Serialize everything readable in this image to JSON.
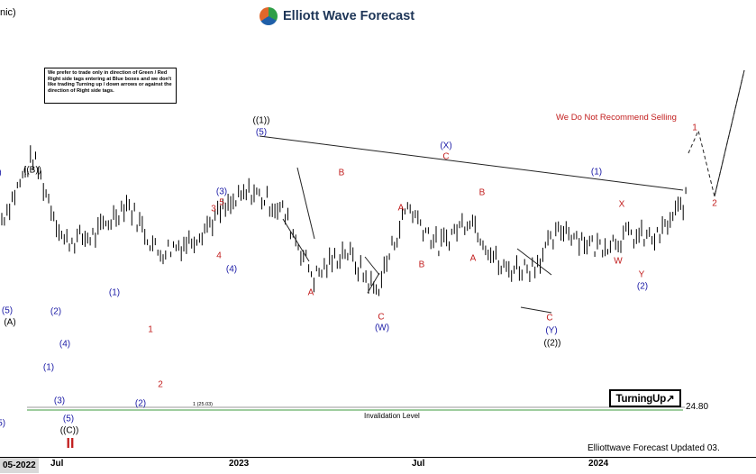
{
  "header": {
    "brand_name": "Elliott Wave Forecast",
    "title_fragment": "nic)"
  },
  "note_box": {
    "text": "We prefer to trade only in direction of Green / Red Right side tags entering at Blue boxes and we don't like trading Turning up / down arrows or against the direction of Right side tags."
  },
  "warning": "We Do Not Recommend Selling",
  "turning_up": "TurningUp↗",
  "price_level": "24.80",
  "invalidation": {
    "label": "Invalidation Level",
    "small_label": "1 (25.03)"
  },
  "footer": "Elliottwave Forecast Updated 03.",
  "colors": {
    "wave_blue": "#1a1aa6",
    "wave_red": "#c21d1d",
    "invalidation_green": "#3c9b3c",
    "bars": "#000000"
  },
  "chart_data": {
    "type": "line",
    "title": "",
    "xlabel": "",
    "ylabel": "",
    "x_ticks": [
      "05-2022",
      "Jul",
      "2023",
      "Jul",
      "2024"
    ],
    "series": [
      {
        "x": [
          "2022-05",
          "2022-06",
          "2022-07",
          "2022-08",
          "2022-09",
          "2022-10",
          "2022-11",
          "2022-12",
          "2023-01",
          "2023-02",
          "2023-03",
          "2023-04",
          "2023-05",
          "2023-06",
          "2023-07",
          "2023-08",
          "2023-09",
          "2023-10",
          "2023-11",
          "2023-12",
          "2024-01",
          "2024-02",
          "2024-03"
        ],
        "values": [
          70,
          92,
          62,
          64,
          76,
          58,
          62,
          72,
          80,
          73,
          49,
          59,
          44,
          75,
          60,
          71,
          52,
          53,
          67,
          60,
          64,
          63,
          78
        ]
      }
    ],
    "wave_labels": [
      {
        "text": "(A)",
        "color": "black"
      },
      {
        "text": "((B))",
        "color": "black"
      },
      {
        "text": "(5)",
        "color": "blue"
      },
      {
        "text": "(2)",
        "color": "blue"
      },
      {
        "text": "(1)",
        "color": "blue"
      },
      {
        "text": "(4)",
        "color": "blue"
      },
      {
        "text": "(3)",
        "color": "blue"
      },
      {
        "text": "(5)",
        "color": "blue"
      },
      {
        "text": "((C))",
        "color": "black"
      },
      {
        "text": "II",
        "color": "red"
      },
      {
        "text": "(1)",
        "color": "blue"
      },
      {
        "text": "(2)",
        "color": "blue"
      },
      {
        "text": "1",
        "color": "red"
      },
      {
        "text": "2",
        "color": "red"
      },
      {
        "text": "(3)",
        "color": "blue"
      },
      {
        "text": "3",
        "color": "red"
      },
      {
        "text": "5",
        "color": "red"
      },
      {
        "text": "4",
        "color": "red"
      },
      {
        "text": "(4)",
        "color": "blue"
      },
      {
        "text": "((1))",
        "color": "black"
      },
      {
        "text": "(5)",
        "color": "blue"
      },
      {
        "text": "B",
        "color": "red"
      },
      {
        "text": "A",
        "color": "red"
      },
      {
        "text": "A",
        "color": "red"
      },
      {
        "text": "B",
        "color": "red"
      },
      {
        "text": "C",
        "color": "red"
      },
      {
        "text": "(W)",
        "color": "blue"
      },
      {
        "text": "(X)",
        "color": "blue"
      },
      {
        "text": "C",
        "color": "red"
      },
      {
        "text": "B",
        "color": "red"
      },
      {
        "text": "A",
        "color": "red"
      },
      {
        "text": "C",
        "color": "red"
      },
      {
        "text": "(Y)",
        "color": "blue"
      },
      {
        "text": "((2))",
        "color": "black"
      },
      {
        "text": "(1)",
        "color": "blue"
      },
      {
        "text": "X",
        "color": "red"
      },
      {
        "text": "W",
        "color": "red"
      },
      {
        "text": "Y",
        "color": "red"
      },
      {
        "text": "(2)",
        "color": "blue"
      },
      {
        "text": "1",
        "color": "red"
      },
      {
        "text": "2",
        "color": "red"
      },
      {
        "text": ")",
        "color": "blue"
      },
      {
        "text": "(5)",
        "color": "blue"
      }
    ],
    "grid": false
  }
}
